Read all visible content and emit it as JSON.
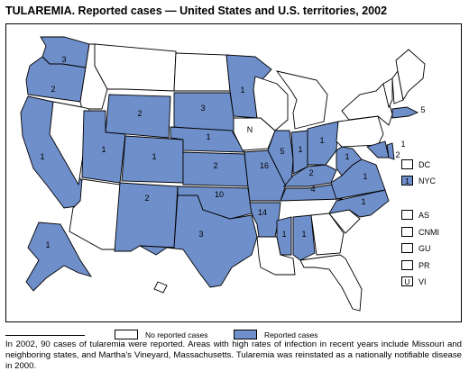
{
  "title": "TULAREMIA. Reported cases — United States and U.S. territories, 2002",
  "colors": {
    "reported": "#6f8fca",
    "not_reported": "#ffffff",
    "border": "#000000"
  },
  "states": [
    {
      "name": "WA",
      "cases": "3"
    },
    {
      "name": "OR",
      "cases": "2"
    },
    {
      "name": "CA",
      "cases": "1"
    },
    {
      "name": "ID",
      "cases": ""
    },
    {
      "name": "NV",
      "cases": ""
    },
    {
      "name": "MT",
      "cases": ""
    },
    {
      "name": "WY",
      "cases": "2"
    },
    {
      "name": "UT",
      "cases": "1"
    },
    {
      "name": "AZ",
      "cases": ""
    },
    {
      "name": "CO",
      "cases": "1"
    },
    {
      "name": "NM",
      "cases": "2"
    },
    {
      "name": "ND",
      "cases": ""
    },
    {
      "name": "SD",
      "cases": "3"
    },
    {
      "name": "NE",
      "cases": "1"
    },
    {
      "name": "KS",
      "cases": "2"
    },
    {
      "name": "OK",
      "cases": "10"
    },
    {
      "name": "TX",
      "cases": "3"
    },
    {
      "name": "MN",
      "cases": "1"
    },
    {
      "name": "IA",
      "cases": "N"
    },
    {
      "name": "MO",
      "cases": "16"
    },
    {
      "name": "AR",
      "cases": "14"
    },
    {
      "name": "LA",
      "cases": ""
    },
    {
      "name": "WI",
      "cases": ""
    },
    {
      "name": "IL",
      "cases": "5"
    },
    {
      "name": "MI",
      "cases": ""
    },
    {
      "name": "IN",
      "cases": "1"
    },
    {
      "name": "OH",
      "cases": "1"
    },
    {
      "name": "KY",
      "cases": "2"
    },
    {
      "name": "TN",
      "cases": "4"
    },
    {
      "name": "MS",
      "cases": "1"
    },
    {
      "name": "AL",
      "cases": "1"
    },
    {
      "name": "GA",
      "cases": ""
    },
    {
      "name": "FL",
      "cases": ""
    },
    {
      "name": "SC",
      "cases": ""
    },
    {
      "name": "NC",
      "cases": "1"
    },
    {
      "name": "VA",
      "cases": "1"
    },
    {
      "name": "WV",
      "cases": "1"
    },
    {
      "name": "PA",
      "cases": ""
    },
    {
      "name": "NY",
      "cases": ""
    },
    {
      "name": "VT",
      "cases": ""
    },
    {
      "name": "NH",
      "cases": ""
    },
    {
      "name": "ME",
      "cases": ""
    },
    {
      "name": "MA",
      "cases": "5"
    },
    {
      "name": "MD",
      "cases": "1"
    },
    {
      "name": "DE",
      "cases": "2"
    },
    {
      "name": "AK",
      "cases": "1"
    },
    {
      "name": "HI",
      "cases": ""
    }
  ],
  "side_boxes": [
    {
      "label": "DC",
      "value": "",
      "reported": false
    },
    {
      "label": "NYC",
      "value": "1",
      "reported": true
    },
    {
      "label": "AS",
      "value": "",
      "reported": false
    },
    {
      "label": "CNMI",
      "value": "",
      "reported": false
    },
    {
      "label": "GU",
      "value": "",
      "reported": false
    },
    {
      "label": "PR",
      "value": "",
      "reported": false
    },
    {
      "label": "VI",
      "value": "U",
      "reported": false
    }
  ],
  "legend": {
    "no_reported": "No reported cases",
    "reported": "Reported cases"
  },
  "caption": "In 2002, 90 cases of tularemia were reported. Areas with high rates of infection in recent years include Missouri and neighboring states, and Martha's Vineyard, Massachusetts. Tularemia was reinstated as a nationally notifiable disease in 2000."
}
